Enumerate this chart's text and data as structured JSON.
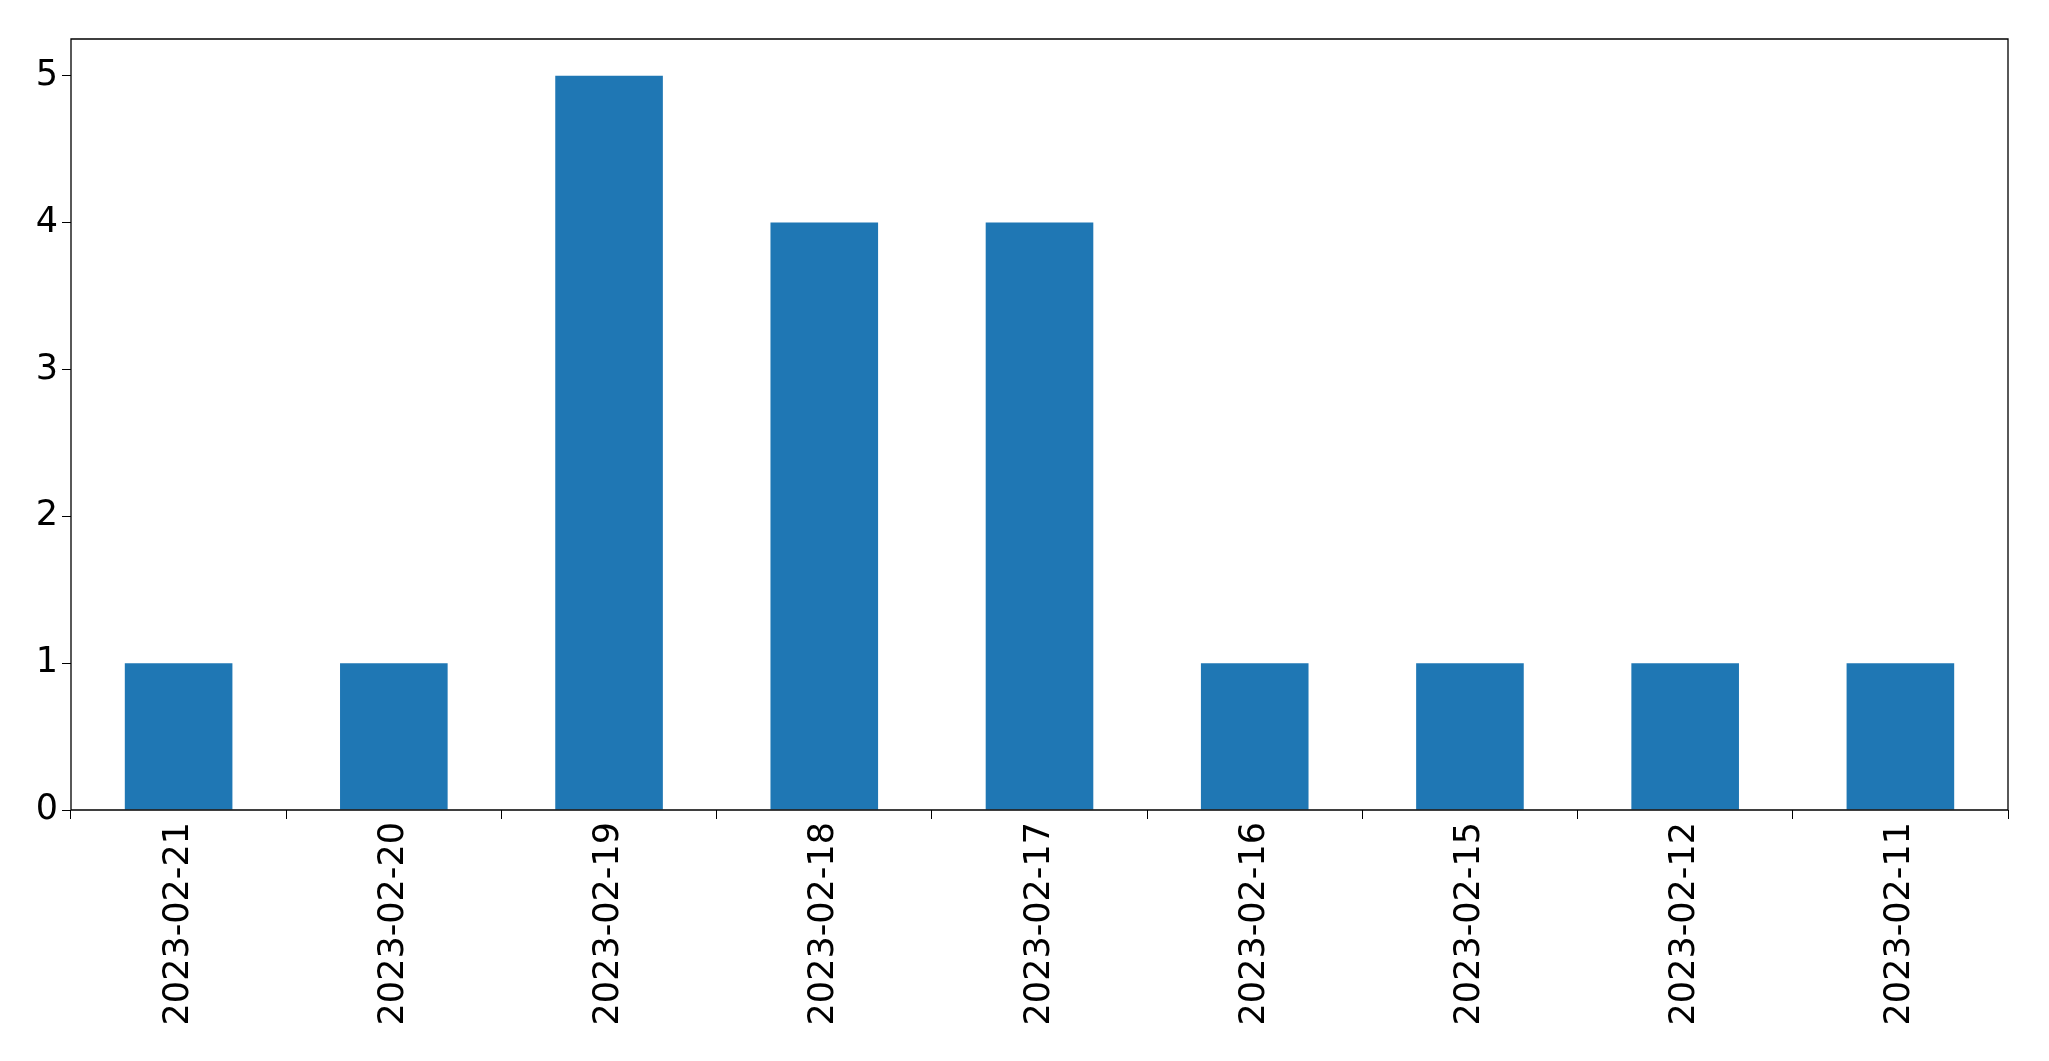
{
  "chart_data": {
    "type": "bar",
    "categories": [
      "2023-02-21",
      "2023-02-20",
      "2023-02-19",
      "2023-02-18",
      "2023-02-17",
      "2023-02-16",
      "2023-02-15",
      "2023-02-12",
      "2023-02-11"
    ],
    "values": [
      1,
      1,
      5,
      4,
      4,
      1,
      1,
      1,
      1
    ],
    "color": "#1f77b4",
    "ylim": [
      0,
      5.25
    ],
    "yticks": [
      0,
      1,
      2,
      3,
      4,
      5
    ],
    "grid": false,
    "legend": false
  }
}
